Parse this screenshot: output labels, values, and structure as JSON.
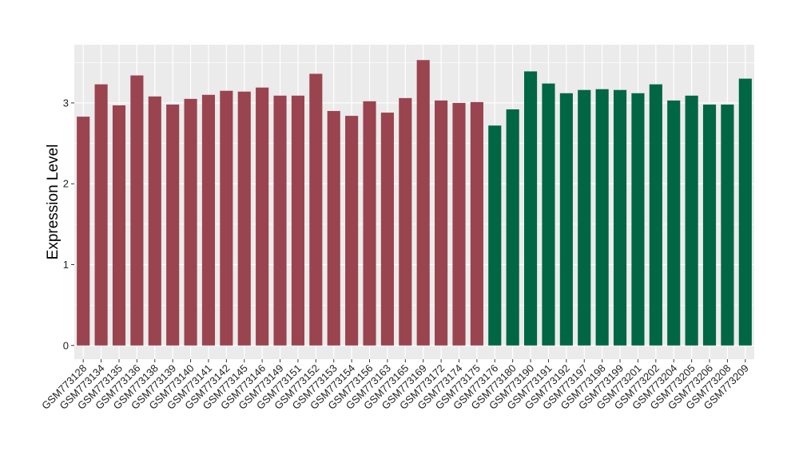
{
  "chart_data": {
    "type": "bar",
    "title": "",
    "xlabel": "",
    "ylabel": "Expression Level",
    "ylim": [
      -0.17,
      3.72
    ],
    "yticks": [
      0,
      1,
      2,
      3
    ],
    "grid": true,
    "legend": "none",
    "colors": {
      "panel_background": "#EBEBEB",
      "grid_major": "#FFFFFF",
      "group1": "#9A4450",
      "group2": "#006644"
    },
    "categories": [
      "GSM773128",
      "GSM773134",
      "GSM773135",
      "GSM773136",
      "GSM773138",
      "GSM773139",
      "GSM773140",
      "GSM773141",
      "GSM773142",
      "GSM773145",
      "GSM773146",
      "GSM773149",
      "GSM773151",
      "GSM773152",
      "GSM773153",
      "GSM773154",
      "GSM773156",
      "GSM773163",
      "GSM773165",
      "GSM773169",
      "GSM773172",
      "GSM773174",
      "GSM773175",
      "GSM773176",
      "GSM773180",
      "GSM773190",
      "GSM773191",
      "GSM773192",
      "GSM773197",
      "GSM773198",
      "GSM773199",
      "GSM773201",
      "GSM773202",
      "GSM773204",
      "GSM773205",
      "GSM773206",
      "GSM773208",
      "GSM773209"
    ],
    "values": [
      2.83,
      3.23,
      2.97,
      3.34,
      3.08,
      2.98,
      3.05,
      3.1,
      3.15,
      3.14,
      3.19,
      3.09,
      3.09,
      3.36,
      2.9,
      2.84,
      3.02,
      2.88,
      3.06,
      3.53,
      3.03,
      3.0,
      3.01,
      2.72,
      2.92,
      3.39,
      3.24,
      3.12,
      3.16,
      3.17,
      3.16,
      3.12,
      3.23,
      3.03,
      3.09,
      2.98,
      2.98,
      3.3
    ],
    "bar_colors": [
      "#9A4450",
      "#9A4450",
      "#9A4450",
      "#9A4450",
      "#9A4450",
      "#9A4450",
      "#9A4450",
      "#9A4450",
      "#9A4450",
      "#9A4450",
      "#9A4450",
      "#9A4450",
      "#9A4450",
      "#9A4450",
      "#9A4450",
      "#9A4450",
      "#9A4450",
      "#9A4450",
      "#9A4450",
      "#9A4450",
      "#9A4450",
      "#9A4450",
      "#9A4450",
      "#006644",
      "#006644",
      "#006644",
      "#006644",
      "#006644",
      "#006644",
      "#006644",
      "#006644",
      "#006644",
      "#006644",
      "#006644",
      "#006644",
      "#006644",
      "#006644",
      "#006644"
    ]
  }
}
